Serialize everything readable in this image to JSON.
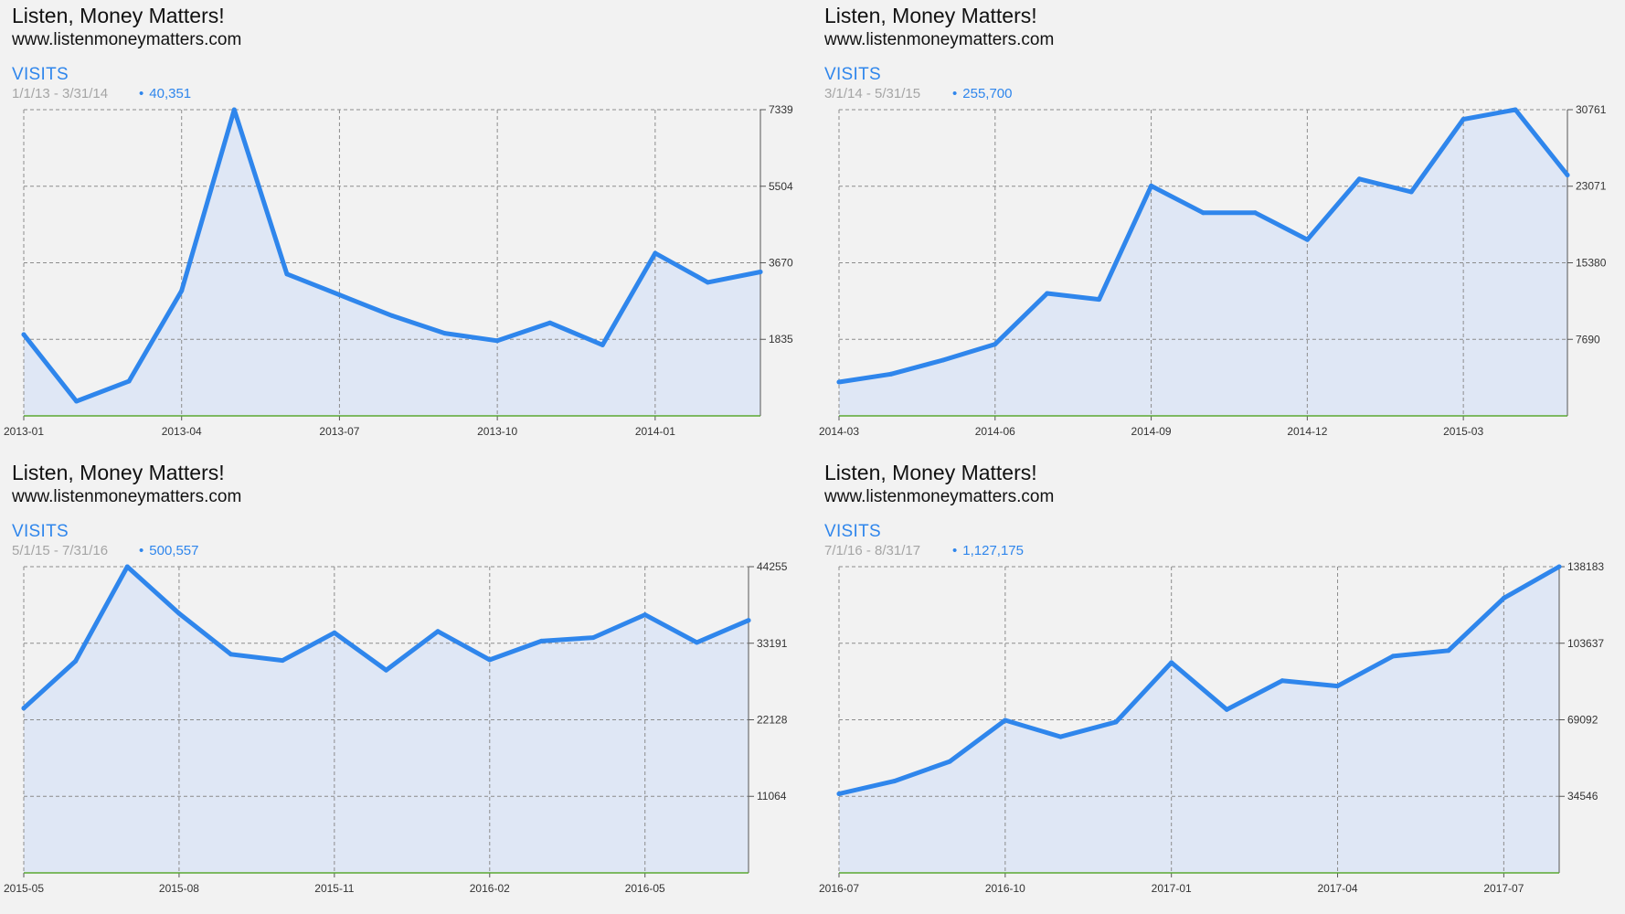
{
  "colors": {
    "line": "#2f86ec",
    "area": "#dfe7f5",
    "grid": "#8c8c8c",
    "x_axis": "#5aa832",
    "background": "#f2f2f2"
  },
  "panels": [
    {
      "site_name": "Listen, Money Matters!",
      "site_url": "www.listenmoneymatters.com",
      "metric": "VISITS",
      "date_range": "1/1/13 - 3/31/14",
      "total": "40,351",
      "total_marker": "•"
    },
    {
      "site_name": "Listen, Money Matters!",
      "site_url": "www.listenmoneymatters.com",
      "metric": "VISITS",
      "date_range": "3/1/14 - 5/31/15",
      "total": "255,700",
      "total_marker": "•"
    },
    {
      "site_name": "Listen, Money Matters!",
      "site_url": "www.listenmoneymatters.com",
      "metric": "VISITS",
      "date_range": "5/1/15 - 7/31/16",
      "total": "500,557",
      "total_marker": "•"
    },
    {
      "site_name": "Listen, Money Matters!",
      "site_url": "www.listenmoneymatters.com",
      "metric": "VISITS",
      "date_range": "7/1/16 - 8/31/17",
      "total": "1,127,175",
      "total_marker": "•"
    }
  ],
  "chart_data": [
    {
      "type": "area",
      "title": "VISITS",
      "grid": true,
      "x": [
        "2013-01",
        "2013-02",
        "2013-03",
        "2013-04",
        "2013-05",
        "2013-06",
        "2013-07",
        "2013-08",
        "2013-09",
        "2013-10",
        "2013-11",
        "2013-12",
        "2014-01",
        "2014-02",
        "2014-03"
      ],
      "x_ticks": [
        "2013-01",
        "2013-04",
        "2013-07",
        "2013-10",
        "2014-01"
      ],
      "y_ticks": [
        1835,
        3670,
        5504,
        7339
      ],
      "ylim": [
        0,
        7339
      ],
      "series": [
        {
          "values": [
            1950,
            350,
            830,
            3000,
            7339,
            3400,
            2900,
            2400,
            1980,
            1800,
            2230,
            1700,
            3900,
            3200,
            3450
          ]
        }
      ]
    },
    {
      "type": "area",
      "title": "VISITS",
      "grid": true,
      "x": [
        "2014-03",
        "2014-04",
        "2014-05",
        "2014-06",
        "2014-07",
        "2014-08",
        "2014-09",
        "2014-10",
        "2014-11",
        "2014-12",
        "2015-01",
        "2015-02",
        "2015-03",
        "2015-04",
        "2015-05"
      ],
      "x_ticks": [
        "2014-03",
        "2014-06",
        "2014-09",
        "2014-12",
        "2015-03"
      ],
      "y_ticks": [
        7690,
        15380,
        23071,
        30761
      ],
      "ylim": [
        0,
        30761
      ],
      "series": [
        {
          "values": [
            3400,
            4200,
            5600,
            7200,
            12300,
            11700,
            23100,
            20400,
            20400,
            17700,
            23800,
            22500,
            29800,
            30761,
            24200
          ]
        }
      ]
    },
    {
      "type": "area",
      "title": "VISITS",
      "grid": true,
      "x": [
        "2015-05",
        "2015-06",
        "2015-07",
        "2015-08",
        "2015-09",
        "2015-10",
        "2015-11",
        "2015-12",
        "2016-01",
        "2016-02",
        "2016-03",
        "2016-04",
        "2016-05",
        "2016-06",
        "2016-07"
      ],
      "x_ticks": [
        "2015-05",
        "2015-08",
        "2015-11",
        "2016-02",
        "2016-05"
      ],
      "y_ticks": [
        11064,
        22128,
        33191,
        44255
      ],
      "ylim": [
        0,
        44255
      ],
      "series": [
        {
          "values": [
            23800,
            30600,
            44255,
            37500,
            31600,
            30700,
            34700,
            29300,
            34900,
            30800,
            33500,
            34000,
            37300,
            33300,
            36500
          ]
        }
      ]
    },
    {
      "type": "area",
      "title": "VISITS",
      "grid": true,
      "x": [
        "2016-07",
        "2016-08",
        "2016-09",
        "2016-10",
        "2016-11",
        "2016-12",
        "2017-01",
        "2017-02",
        "2017-03",
        "2017-04",
        "2017-05",
        "2017-06",
        "2017-07",
        "2017-08"
      ],
      "x_ticks": [
        "2016-07",
        "2016-10",
        "2017-01",
        "2017-04",
        "2017-07"
      ],
      "y_ticks": [
        34546,
        69092,
        103637,
        138183
      ],
      "ylim": [
        0,
        138183
      ],
      "series": [
        {
          "values": [
            35700,
            41400,
            50300,
            68900,
            61400,
            68100,
            94900,
            73700,
            86700,
            84300,
            97800,
            100300,
            124000,
            138183
          ]
        }
      ]
    }
  ]
}
